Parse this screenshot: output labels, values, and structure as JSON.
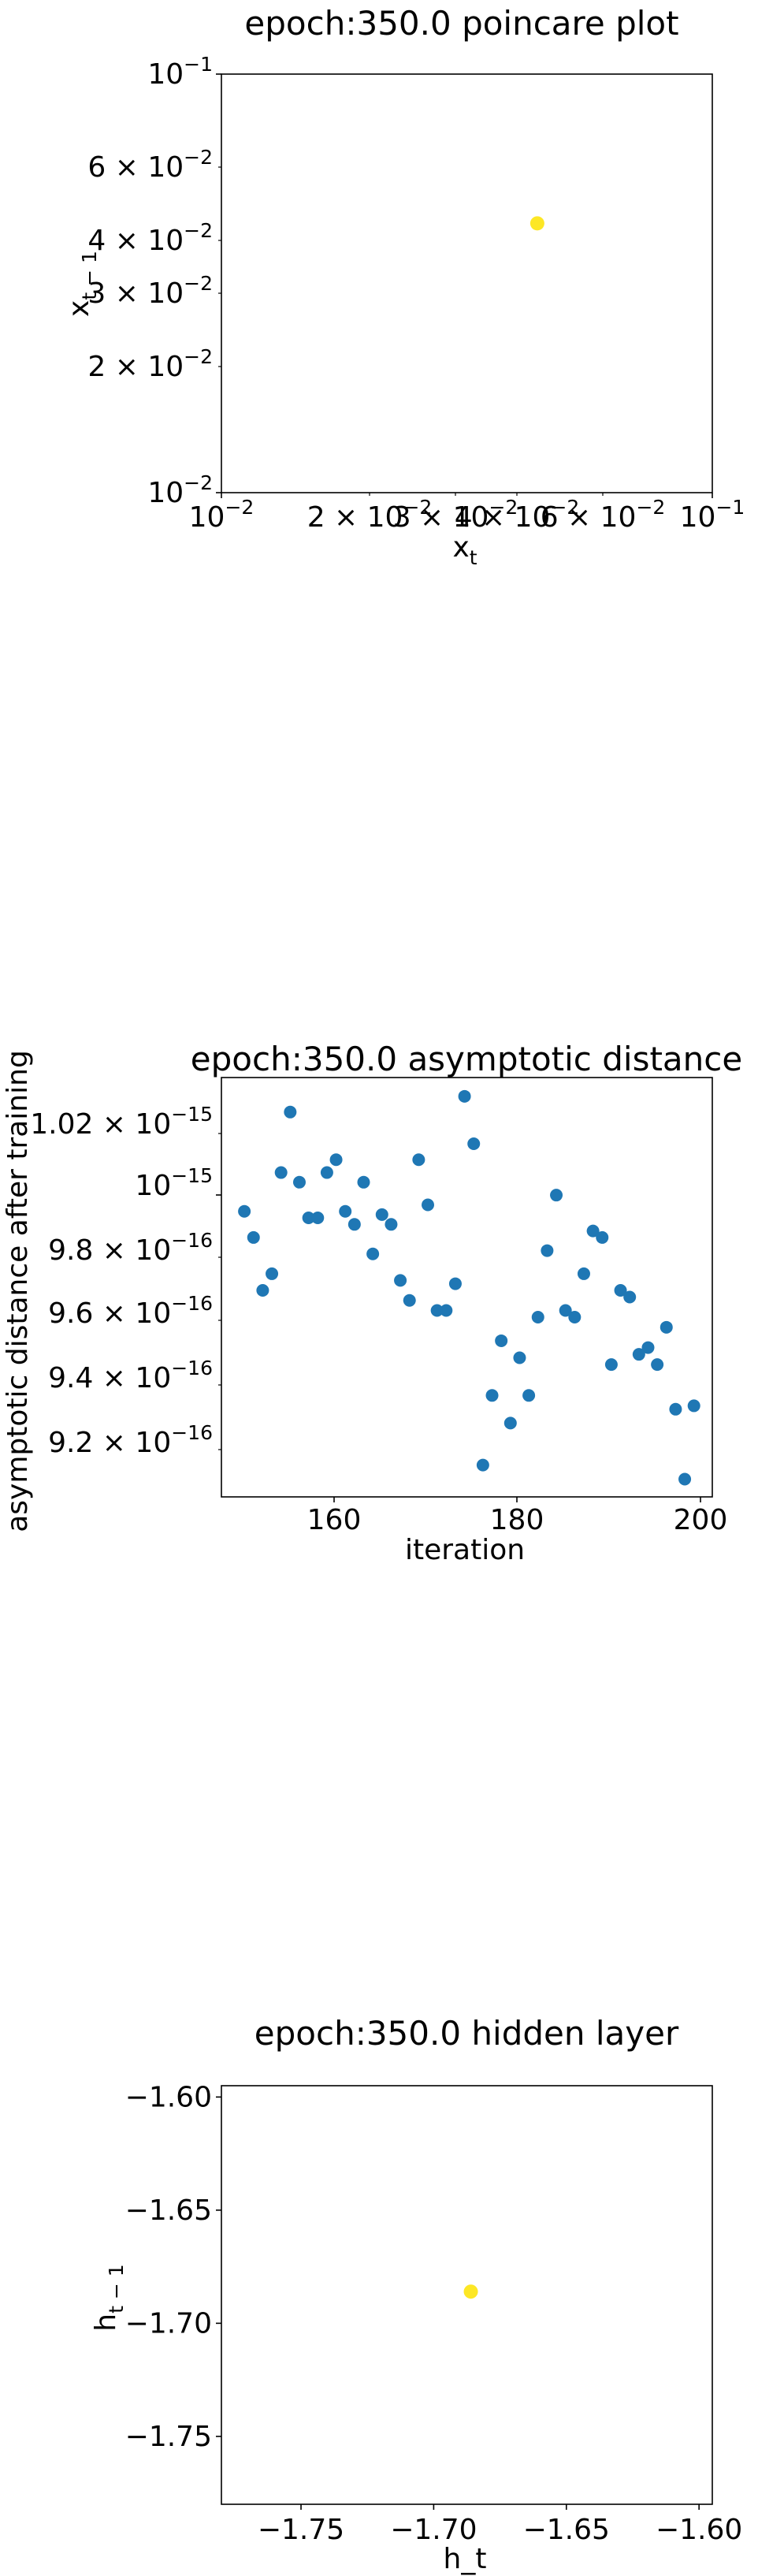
{
  "chart_data": [
    {
      "type": "scatter",
      "title": "epoch:350.0 poincare plot",
      "xlabel": "x_t",
      "ylabel": "x_{t-1}",
      "xscale": "log",
      "yscale": "log",
      "xlim": [
        0.01,
        0.1
      ],
      "ylim": [
        0.01,
        0.1
      ],
      "x_ticks": [
        "10^-2",
        "2×10^-2",
        "3×10^-2",
        "4×10^-2",
        "6×10^-2",
        "10^-1"
      ],
      "y_ticks": [
        "10^-2",
        "2×10^-2",
        "3×10^-2",
        "4×10^-2",
        "6×10^-2",
        "10^-1"
      ],
      "grid": false,
      "point_color": "#fde725",
      "points": [
        {
          "x": 0.044,
          "y": 0.044
        }
      ]
    },
    {
      "type": "scatter",
      "title": "epoch:350.0 asymptotic distance",
      "xlabel": "iteration",
      "ylabel": "asymptotic distance after training",
      "yscale": "log",
      "xlim": [
        147.5,
        201
      ],
      "ylim": [
        9.07e-16,
        1.033e-15
      ],
      "x_ticks": [
        160,
        180,
        200
      ],
      "y_ticks": [
        "9.2×10^-16",
        "9.4×10^-16",
        "9.6×10^-16",
        "9.8×10^-16",
        "10^-15",
        "1.02×10^-15"
      ],
      "grid": false,
      "point_color": "#1f77b4",
      "x": [
        150,
        151,
        152,
        153,
        154,
        155,
        156,
        157,
        158,
        159,
        160,
        161,
        162,
        163,
        164,
        165,
        166,
        167,
        168,
        169,
        170,
        171,
        172,
        173,
        174,
        175,
        176,
        177,
        178,
        179,
        180,
        181,
        182,
        183,
        184,
        185,
        186,
        187,
        188,
        189,
        190,
        191,
        192,
        193,
        194,
        195,
        196,
        197,
        198,
        199
      ],
      "y": [
        9.91e-16,
        9.83e-16,
        9.67e-16,
        9.72e-16,
        1.003e-15,
        1.022e-15,
        1e-15,
        9.89e-16,
        9.89e-16,
        1.003e-15,
        1.007e-15,
        9.91e-16,
        9.87e-16,
        1e-15,
        9.78e-16,
        9.9e-16,
        9.87e-16,
        9.7e-16,
        9.64e-16,
        1.007e-15,
        9.93e-16,
        9.61e-16,
        9.61e-16,
        9.69e-16,
        1.027e-15,
        1.012e-15,
        9.16e-16,
        9.36e-16,
        9.52e-16,
        9.28e-16,
        9.47e-16,
        9.36e-16,
        9.59e-16,
        9.79e-16,
        9.96e-16,
        9.61e-16,
        9.59e-16,
        9.72e-16,
        9.85e-16,
        9.83e-16,
        9.45e-16,
        9.67e-16,
        9.65e-16,
        9.48e-16,
        9.5e-16,
        9.45e-16,
        9.56e-16,
        9.32e-16,
        9.12e-16,
        9.33e-16
      ]
    },
    {
      "type": "scatter",
      "title": "epoch:350.0 hidden layer",
      "xlabel": "h_t",
      "ylabel": "h_{t-1}",
      "xlim": [
        -1.78,
        -1.595
      ],
      "ylim": [
        -1.78,
        -1.595
      ],
      "x_ticks": [
        -1.75,
        -1.7,
        -1.65,
        -1.6
      ],
      "y_ticks": [
        -1.6,
        -1.65,
        -1.7,
        -1.75
      ],
      "x_tick_labels": [
        "−1.75",
        "−1.70",
        "−1.65",
        "−1.60"
      ],
      "y_tick_labels": [
        "−1.60",
        "−1.65",
        "−1.70",
        "−1.75"
      ],
      "grid": false,
      "point_color": "#fde725",
      "points": [
        {
          "x": -1.686,
          "y": -1.686
        }
      ]
    }
  ]
}
